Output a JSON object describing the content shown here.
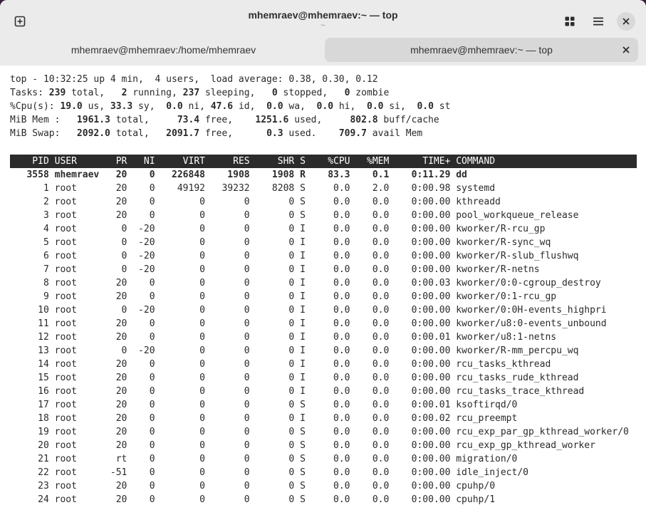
{
  "window": {
    "title": "mhemraev@mhemraev:~ — top",
    "subtitle": "~"
  },
  "tabs": [
    {
      "label": "mhemraev@mhemraev:/home/mhemraev"
    },
    {
      "label": "mhemraev@mhemraev:~ — top"
    }
  ],
  "icons": [
    "new-tab-icon",
    "grid-icon",
    "menu-icon",
    "close-icon",
    "tab-close-icon"
  ],
  "summary": {
    "line1": "top - 10:32:25 up 4 min,  4 users,  load average: 0.38, 0.30, 0.12",
    "tasks_label": "Tasks: ",
    "tasks_total": "239",
    "tasks_total_l": " total,   ",
    "tasks_running": "2",
    "tasks_running_l": " running, ",
    "tasks_sleeping": "237",
    "tasks_sleeping_l": " sleeping,   ",
    "tasks_stopped": "0",
    "tasks_stopped_l": " stopped,   ",
    "tasks_zombie": "0",
    "tasks_zombie_l": " zombie",
    "cpu_label": "%Cpu(s): ",
    "cpu_us": "19.0",
    "cpu_us_l": " us, ",
    "cpu_sy": "33.3",
    "cpu_sy_l": " sy,  ",
    "cpu_ni": "0.0",
    "cpu_ni_l": " ni, ",
    "cpu_id": "47.6",
    "cpu_id_l": " id,  ",
    "cpu_wa": "0.0",
    "cpu_wa_l": " wa,  ",
    "cpu_hi": "0.0",
    "cpu_hi_l": " hi,  ",
    "cpu_si": "0.0",
    "cpu_si_l": " si,  ",
    "cpu_st": "0.0",
    "cpu_st_l": " st",
    "mem_label": "MiB Mem :   ",
    "mem_total": "1961.3",
    "mem_total_l": " total,     ",
    "mem_free": "73.4",
    "mem_free_l": " free,    ",
    "mem_used": "1251.6",
    "mem_used_l": " used,     ",
    "mem_cache": "802.8",
    "mem_cache_l": " buff/cache",
    "swap_label": "MiB Swap:   ",
    "swap_total": "2092.0",
    "swap_total_l": " total,   ",
    "swap_free": "2091.7",
    "swap_free_l": " free,      ",
    "swap_used": "0.3",
    "swap_used_l": " used.    ",
    "swap_avail": "709.7",
    "swap_avail_l": " avail Mem"
  },
  "columns": [
    "PID",
    "USER",
    "PR",
    "NI",
    "VIRT",
    "RES",
    "SHR",
    "S",
    "%CPU",
    "%MEM",
    "TIME+",
    "COMMAND"
  ],
  "processes": [
    {
      "pid": "3558",
      "user": "mhemraev",
      "pr": "20",
      "ni": "0",
      "virt": "226848",
      "res": "1908",
      "shr": "1908",
      "s": "R",
      "cpu": "83.3",
      "mem": "0.1",
      "time": "0:11.29",
      "cmd": "dd",
      "bold": true
    },
    {
      "pid": "1",
      "user": "root",
      "pr": "20",
      "ni": "0",
      "virt": "49192",
      "res": "39232",
      "shr": "8208",
      "s": "S",
      "cpu": "0.0",
      "mem": "2.0",
      "time": "0:00.98",
      "cmd": "systemd"
    },
    {
      "pid": "2",
      "user": "root",
      "pr": "20",
      "ni": "0",
      "virt": "0",
      "res": "0",
      "shr": "0",
      "s": "S",
      "cpu": "0.0",
      "mem": "0.0",
      "time": "0:00.00",
      "cmd": "kthreadd"
    },
    {
      "pid": "3",
      "user": "root",
      "pr": "20",
      "ni": "0",
      "virt": "0",
      "res": "0",
      "shr": "0",
      "s": "S",
      "cpu": "0.0",
      "mem": "0.0",
      "time": "0:00.00",
      "cmd": "pool_workqueue_release"
    },
    {
      "pid": "4",
      "user": "root",
      "pr": "0",
      "ni": "-20",
      "virt": "0",
      "res": "0",
      "shr": "0",
      "s": "I",
      "cpu": "0.0",
      "mem": "0.0",
      "time": "0:00.00",
      "cmd": "kworker/R-rcu_gp"
    },
    {
      "pid": "5",
      "user": "root",
      "pr": "0",
      "ni": "-20",
      "virt": "0",
      "res": "0",
      "shr": "0",
      "s": "I",
      "cpu": "0.0",
      "mem": "0.0",
      "time": "0:00.00",
      "cmd": "kworker/R-sync_wq"
    },
    {
      "pid": "6",
      "user": "root",
      "pr": "0",
      "ni": "-20",
      "virt": "0",
      "res": "0",
      "shr": "0",
      "s": "I",
      "cpu": "0.0",
      "mem": "0.0",
      "time": "0:00.00",
      "cmd": "kworker/R-slub_flushwq"
    },
    {
      "pid": "7",
      "user": "root",
      "pr": "0",
      "ni": "-20",
      "virt": "0",
      "res": "0",
      "shr": "0",
      "s": "I",
      "cpu": "0.0",
      "mem": "0.0",
      "time": "0:00.00",
      "cmd": "kworker/R-netns"
    },
    {
      "pid": "8",
      "user": "root",
      "pr": "20",
      "ni": "0",
      "virt": "0",
      "res": "0",
      "shr": "0",
      "s": "I",
      "cpu": "0.0",
      "mem": "0.0",
      "time": "0:00.03",
      "cmd": "kworker/0:0-cgroup_destroy"
    },
    {
      "pid": "9",
      "user": "root",
      "pr": "20",
      "ni": "0",
      "virt": "0",
      "res": "0",
      "shr": "0",
      "s": "I",
      "cpu": "0.0",
      "mem": "0.0",
      "time": "0:00.00",
      "cmd": "kworker/0:1-rcu_gp"
    },
    {
      "pid": "10",
      "user": "root",
      "pr": "0",
      "ni": "-20",
      "virt": "0",
      "res": "0",
      "shr": "0",
      "s": "I",
      "cpu": "0.0",
      "mem": "0.0",
      "time": "0:00.00",
      "cmd": "kworker/0:0H-events_highpri"
    },
    {
      "pid": "11",
      "user": "root",
      "pr": "20",
      "ni": "0",
      "virt": "0",
      "res": "0",
      "shr": "0",
      "s": "I",
      "cpu": "0.0",
      "mem": "0.0",
      "time": "0:00.00",
      "cmd": "kworker/u8:0-events_unbound"
    },
    {
      "pid": "12",
      "user": "root",
      "pr": "20",
      "ni": "0",
      "virt": "0",
      "res": "0",
      "shr": "0",
      "s": "I",
      "cpu": "0.0",
      "mem": "0.0",
      "time": "0:00.01",
      "cmd": "kworker/u8:1-netns"
    },
    {
      "pid": "13",
      "user": "root",
      "pr": "0",
      "ni": "-20",
      "virt": "0",
      "res": "0",
      "shr": "0",
      "s": "I",
      "cpu": "0.0",
      "mem": "0.0",
      "time": "0:00.00",
      "cmd": "kworker/R-mm_percpu_wq"
    },
    {
      "pid": "14",
      "user": "root",
      "pr": "20",
      "ni": "0",
      "virt": "0",
      "res": "0",
      "shr": "0",
      "s": "I",
      "cpu": "0.0",
      "mem": "0.0",
      "time": "0:00.00",
      "cmd": "rcu_tasks_kthread"
    },
    {
      "pid": "15",
      "user": "root",
      "pr": "20",
      "ni": "0",
      "virt": "0",
      "res": "0",
      "shr": "0",
      "s": "I",
      "cpu": "0.0",
      "mem": "0.0",
      "time": "0:00.00",
      "cmd": "rcu_tasks_rude_kthread"
    },
    {
      "pid": "16",
      "user": "root",
      "pr": "20",
      "ni": "0",
      "virt": "0",
      "res": "0",
      "shr": "0",
      "s": "I",
      "cpu": "0.0",
      "mem": "0.0",
      "time": "0:00.00",
      "cmd": "rcu_tasks_trace_kthread"
    },
    {
      "pid": "17",
      "user": "root",
      "pr": "20",
      "ni": "0",
      "virt": "0",
      "res": "0",
      "shr": "0",
      "s": "S",
      "cpu": "0.0",
      "mem": "0.0",
      "time": "0:00.01",
      "cmd": "ksoftirqd/0"
    },
    {
      "pid": "18",
      "user": "root",
      "pr": "20",
      "ni": "0",
      "virt": "0",
      "res": "0",
      "shr": "0",
      "s": "I",
      "cpu": "0.0",
      "mem": "0.0",
      "time": "0:00.02",
      "cmd": "rcu_preempt"
    },
    {
      "pid": "19",
      "user": "root",
      "pr": "20",
      "ni": "0",
      "virt": "0",
      "res": "0",
      "shr": "0",
      "s": "S",
      "cpu": "0.0",
      "mem": "0.0",
      "time": "0:00.00",
      "cmd": "rcu_exp_par_gp_kthread_worker/0"
    },
    {
      "pid": "20",
      "user": "root",
      "pr": "20",
      "ni": "0",
      "virt": "0",
      "res": "0",
      "shr": "0",
      "s": "S",
      "cpu": "0.0",
      "mem": "0.0",
      "time": "0:00.00",
      "cmd": "rcu_exp_gp_kthread_worker"
    },
    {
      "pid": "21",
      "user": "root",
      "pr": "rt",
      "ni": "0",
      "virt": "0",
      "res": "0",
      "shr": "0",
      "s": "S",
      "cpu": "0.0",
      "mem": "0.0",
      "time": "0:00.00",
      "cmd": "migration/0"
    },
    {
      "pid": "22",
      "user": "root",
      "pr": "-51",
      "ni": "0",
      "virt": "0",
      "res": "0",
      "shr": "0",
      "s": "S",
      "cpu": "0.0",
      "mem": "0.0",
      "time": "0:00.00",
      "cmd": "idle_inject/0"
    },
    {
      "pid": "23",
      "user": "root",
      "pr": "20",
      "ni": "0",
      "virt": "0",
      "res": "0",
      "shr": "0",
      "s": "S",
      "cpu": "0.0",
      "mem": "0.0",
      "time": "0:00.00",
      "cmd": "cpuhp/0"
    },
    {
      "pid": "24",
      "user": "root",
      "pr": "20",
      "ni": "0",
      "virt": "0",
      "res": "0",
      "shr": "0",
      "s": "S",
      "cpu": "0.0",
      "mem": "0.0",
      "time": "0:00.00",
      "cmd": "cpuhp/1"
    }
  ]
}
